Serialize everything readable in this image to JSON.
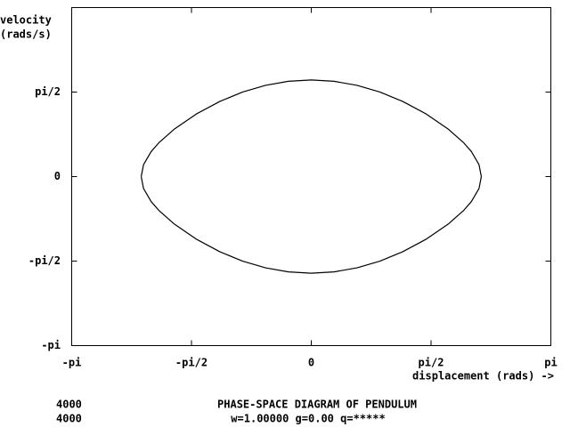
{
  "chart_data": {
    "type": "line",
    "title": "PHASE-SPACE DIAGRAM OF PENDULUM",
    "subtitle": "w=1.00000 g=0.00 q=*****",
    "counters": [
      "4000",
      "4000"
    ],
    "ylabel": [
      "velocity",
      "(rads/s)"
    ],
    "xlabel": "displacement (rads) ->",
    "xlim": [
      -3.14159,
      3.14159
    ],
    "ylim": [
      -3.14159,
      3.14159
    ],
    "xticks": [
      {
        "value": -3.14159,
        "label": "-pi"
      },
      {
        "value": -1.5708,
        "label": "-pi/2"
      },
      0,
      {
        "value": 1.5708,
        "label": "pi/2"
      },
      {
        "value": 3.14159,
        "label": "pi"
      }
    ],
    "yticks": [
      {
        "value": -3.14159,
        "label": "-pi"
      },
      {
        "value": -1.5708,
        "label": "-pi/2"
      },
      0,
      {
        "value": 1.5708,
        "label": "pi/2"
      }
    ],
    "color": "#000000",
    "x": [
      -2.23,
      -2.2,
      -2.1,
      -2.0,
      -1.8,
      -1.5,
      -1.2,
      -0.9,
      -0.6,
      -0.3,
      0,
      0.3,
      0.6,
      0.9,
      1.2,
      1.5,
      1.8,
      2.0,
      2.1,
      2.2,
      2.23,
      2.2,
      2.1,
      2.0,
      1.8,
      1.5,
      1.2,
      0.9,
      0.6,
      0.3,
      0,
      -0.3,
      -0.6,
      -0.9,
      -1.2,
      -1.5,
      -1.8,
      -2.0,
      -2.1,
      -2.2,
      -2.23
    ],
    "y": [
      0,
      0.2195,
      0.4643,
      0.6269,
      0.878,
      1.169,
      1.3964,
      1.5711,
      1.6958,
      1.7708,
      1.7959,
      1.7708,
      1.6958,
      1.5711,
      1.3964,
      1.169,
      0.878,
      0.6269,
      0.4643,
      0.2195,
      0,
      -0.2195,
      -0.4643,
      -0.6269,
      -0.878,
      -1.169,
      -1.3964,
      -1.5711,
      -1.6958,
      -1.7708,
      -1.7959,
      -1.7708,
      -1.6958,
      -1.5711,
      -1.3964,
      -1.169,
      -0.878,
      -0.6269,
      -0.4643,
      -0.2195,
      0
    ]
  }
}
